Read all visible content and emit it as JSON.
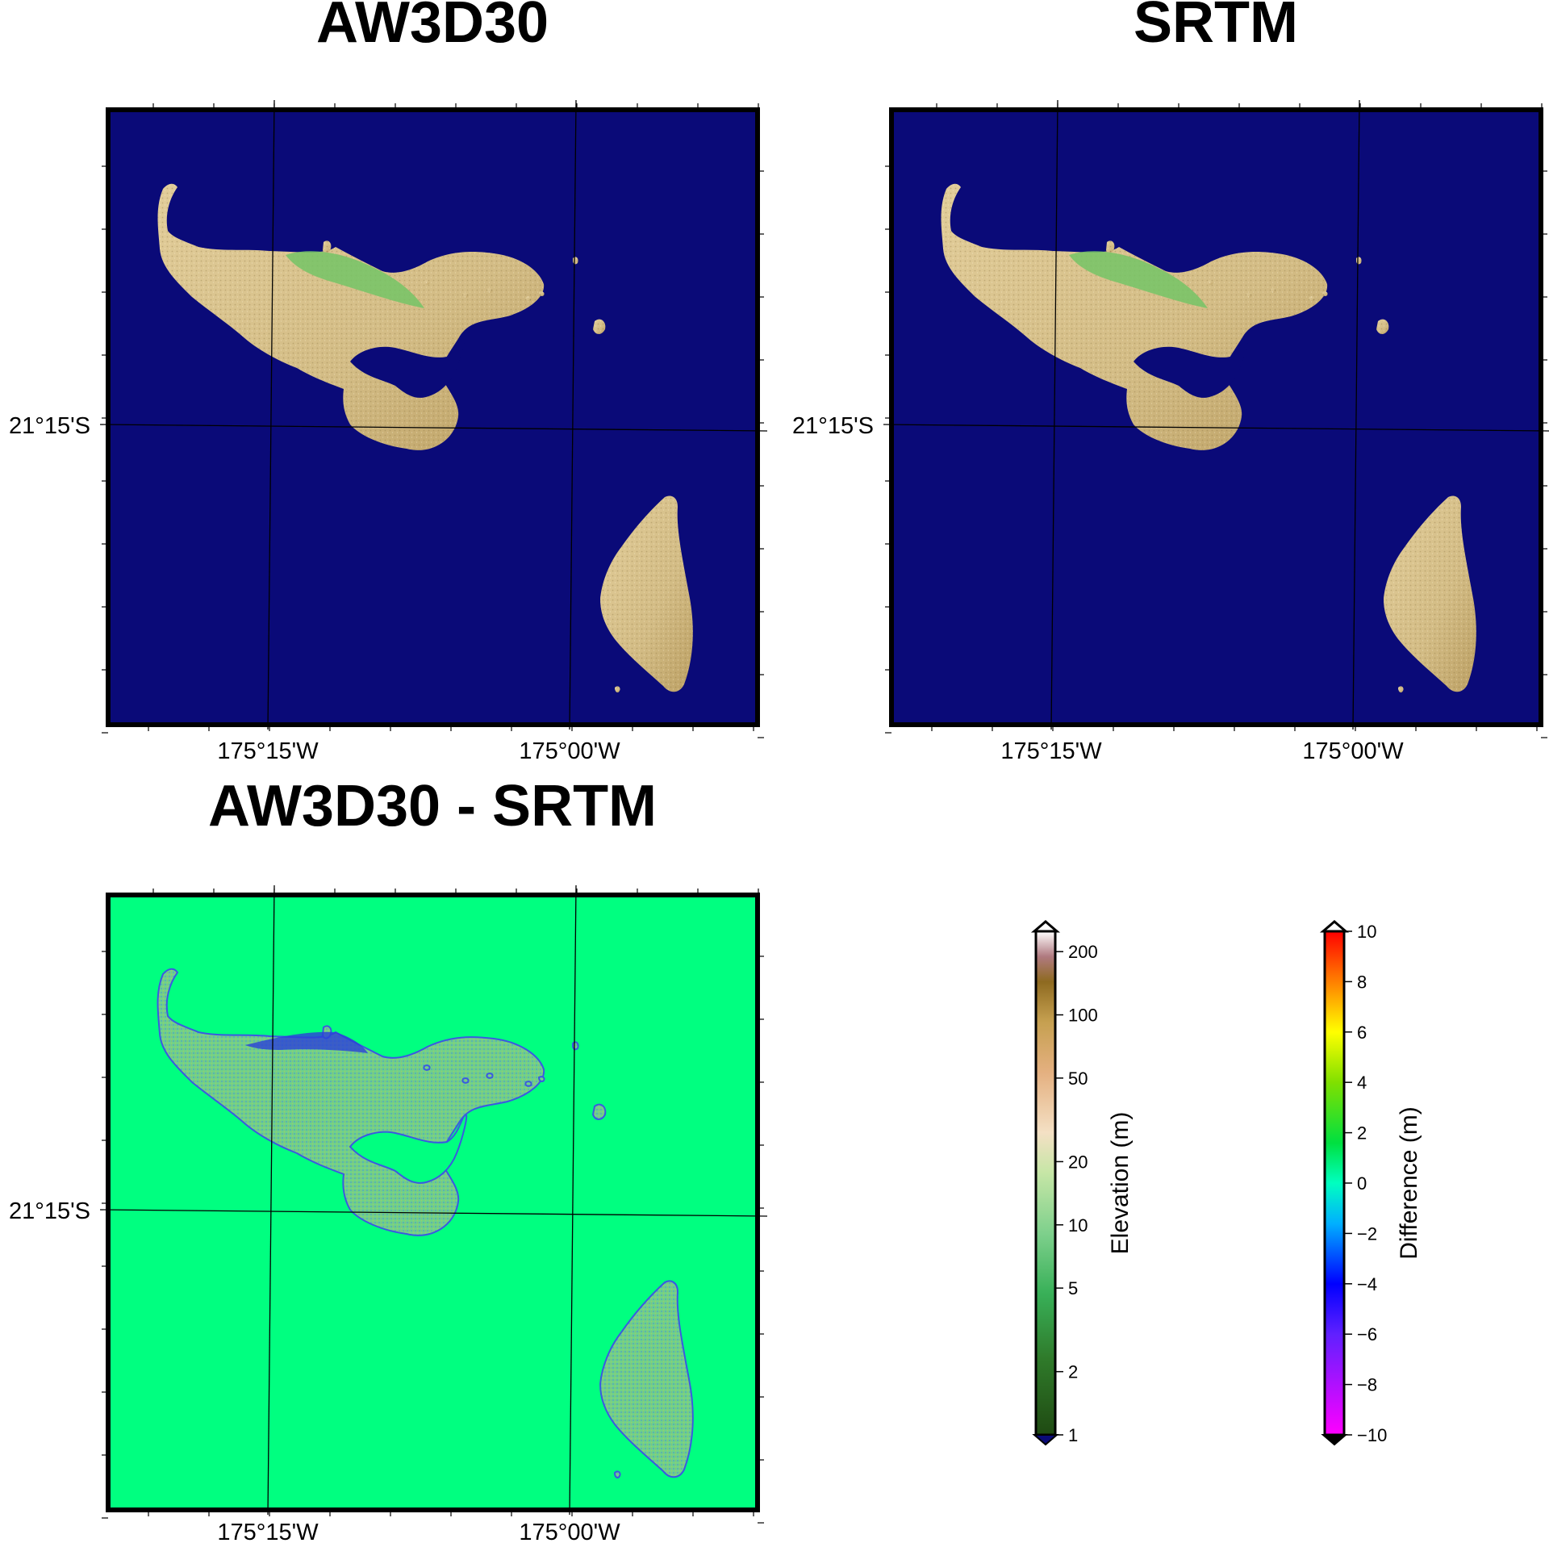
{
  "panels": [
    {
      "id": "aw3d30",
      "title": "AW3D30",
      "type": "elevation"
    },
    {
      "id": "srtm",
      "title": "SRTM",
      "type": "elevation"
    },
    {
      "id": "diff",
      "title": "AW3D30 - SRTM",
      "type": "difference"
    }
  ],
  "axes": {
    "lat_label": "21°15'S",
    "lon_labels": [
      "175°15'W",
      "175°00'W"
    ]
  },
  "colors": {
    "ocean": "#0a0a78",
    "land_low": "#6fbf5a",
    "land_high": "#d8c08a",
    "ridge": "#c89aa0",
    "diff_background": "#00ff80"
  },
  "colorbars": {
    "elevation": {
      "label": "Elevation (m)",
      "scale": "log",
      "range": [
        1,
        250
      ],
      "tick_labels": [
        "1",
        "2",
        "5",
        "10",
        "20",
        "50",
        "100",
        "200"
      ],
      "tick_values": [
        1,
        2,
        5,
        10,
        20,
        50,
        100,
        200
      ]
    },
    "difference": {
      "label": "Difference (m)",
      "scale": "linear",
      "range": [
        -10,
        10
      ],
      "tick_labels": [
        "−10",
        "−8",
        "−6",
        "−4",
        "−2",
        "0",
        "2",
        "4",
        "6",
        "8",
        "10"
      ],
      "tick_values": [
        -10,
        -8,
        -6,
        -4,
        -2,
        0,
        2,
        4,
        6,
        8,
        10
      ]
    }
  }
}
